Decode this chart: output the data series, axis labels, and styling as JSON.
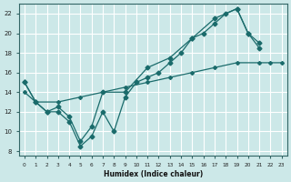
{
  "xlabel": "Humidex (Indice chaleur)",
  "bg_color": "#cce8e8",
  "grid_color": "#ffffff",
  "line_color": "#1a6b6b",
  "xlim": [
    -0.5,
    23.5
  ],
  "ylim": [
    7.5,
    23
  ],
  "xticks": [
    0,
    1,
    2,
    3,
    4,
    5,
    6,
    7,
    8,
    9,
    10,
    11,
    12,
    13,
    14,
    15,
    16,
    17,
    18,
    19,
    20,
    21,
    22,
    23
  ],
  "yticks": [
    8,
    10,
    12,
    14,
    16,
    18,
    20,
    22
  ],
  "line1_x": [
    0,
    1,
    3,
    5,
    7,
    9,
    11,
    13,
    15,
    17,
    19,
    21,
    22,
    23
  ],
  "line1_y": [
    14,
    13,
    13,
    13.5,
    14,
    14.5,
    15,
    15.5,
    16,
    16.5,
    17,
    17,
    17,
    17
  ],
  "line2_x": [
    0,
    1,
    2,
    3,
    4,
    5,
    6,
    7,
    8,
    9,
    10,
    11,
    12,
    13,
    14,
    15,
    16,
    17,
    18,
    19,
    20,
    21,
    22
  ],
  "line2_y": [
    15,
    13,
    12,
    12,
    11,
    8.5,
    9.5,
    12,
    10,
    13.5,
    15,
    15.5,
    16,
    17,
    18,
    19.5,
    20,
    21,
    22,
    22.5,
    20,
    19,
    null
  ],
  "line3_x": [
    0,
    1,
    2,
    3,
    4,
    5,
    6,
    7,
    9,
    11,
    13,
    15,
    17,
    19,
    20,
    21,
    22,
    23
  ],
  "line3_y": [
    15,
    13,
    12,
    12.5,
    11.5,
    9,
    10.5,
    14,
    14,
    16.5,
    17.5,
    19.5,
    21.5,
    22.5,
    20,
    18.5,
    null,
    null
  ]
}
